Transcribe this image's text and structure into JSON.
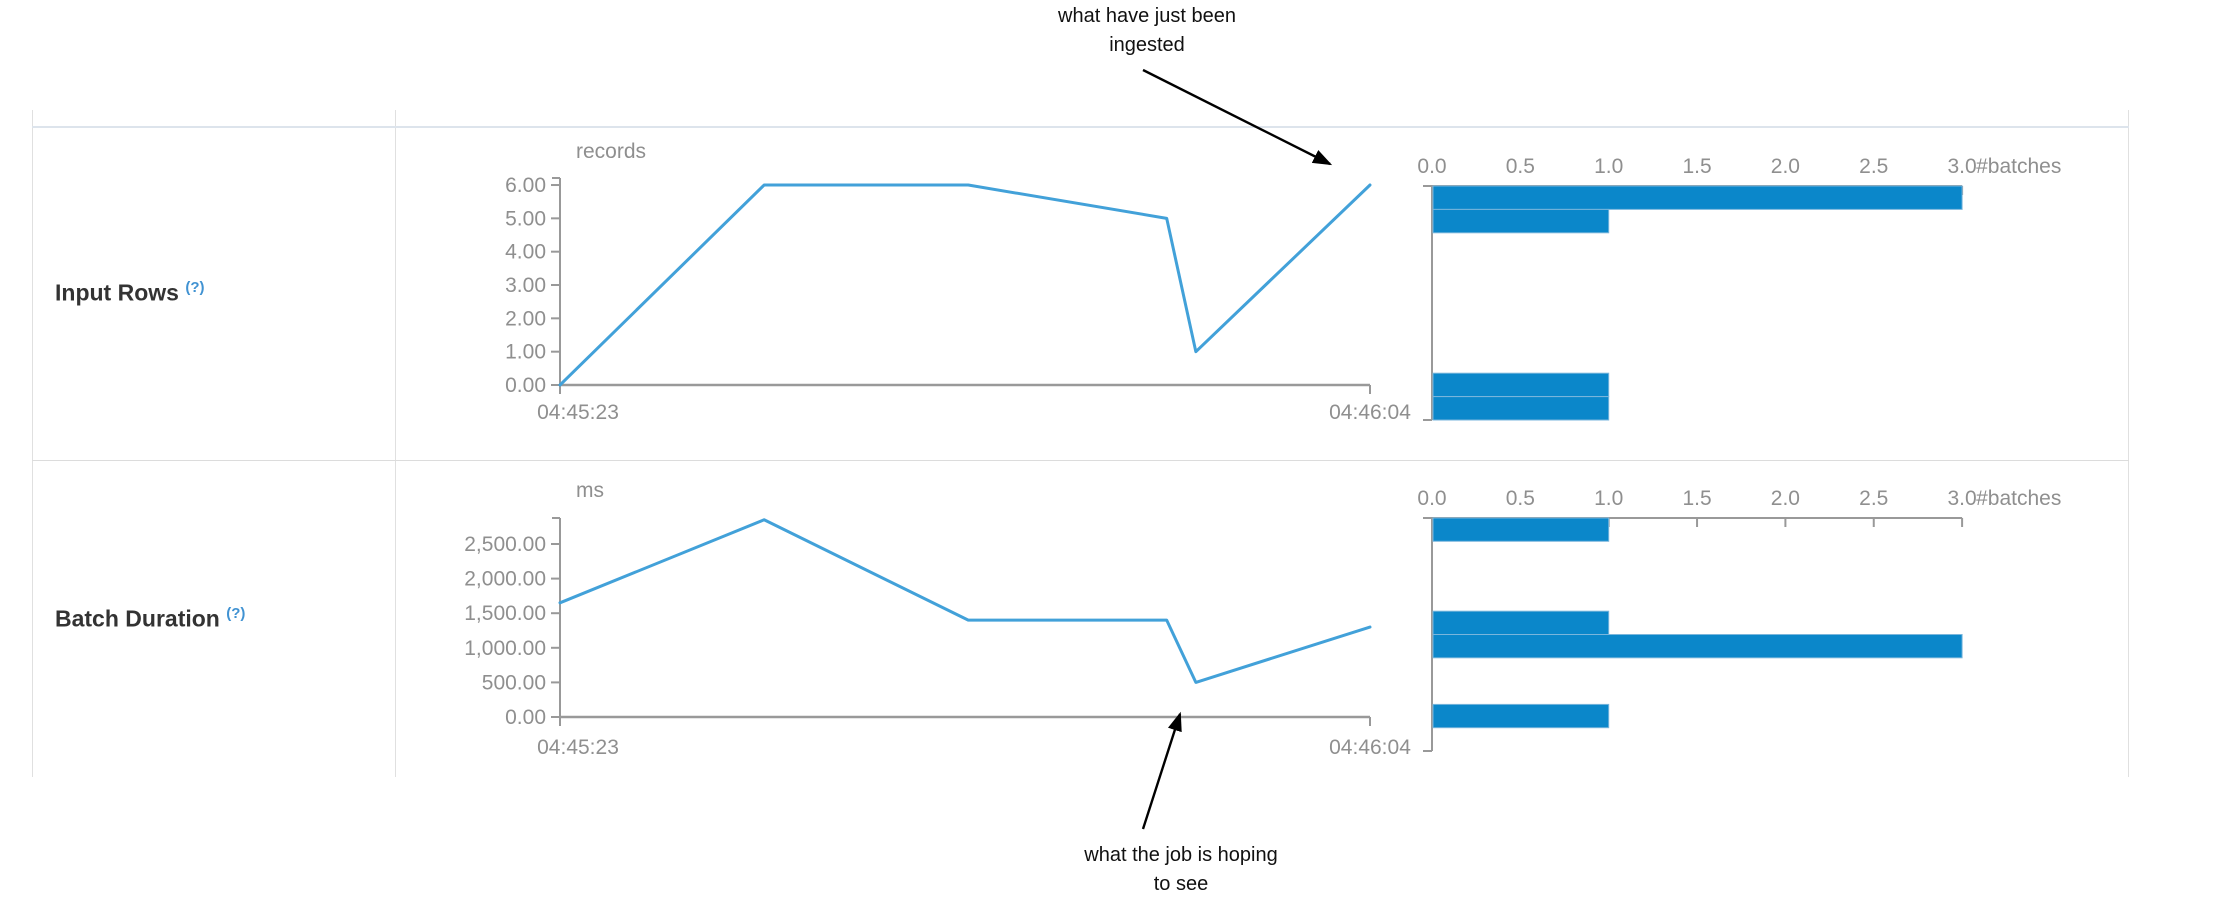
{
  "table": {
    "rows": [
      {
        "label": "Input Rows",
        "help": "(?)"
      },
      {
        "label": "Batch Duration",
        "help": "(?)"
      }
    ]
  },
  "annotations": {
    "top": {
      "line1": "what have just been",
      "line2": "ingested"
    },
    "bottom": {
      "line1": "what the job is hoping",
      "line2": "to see"
    }
  },
  "colors": {
    "line": "#42a1d9",
    "bar_fill": "#0b87ca",
    "bar_stroke": "#7ab6dc",
    "axis": "#999999",
    "tick_text": "#8f8f8f",
    "label_text": "#333333",
    "help_link": "#4092d2",
    "annotation": "#111111"
  },
  "chart_data": [
    {
      "id": "input-rows-timeline",
      "type": "line",
      "title": "Input Rows timeline",
      "unit": "records",
      "x_axis": {
        "start_label": "04:45:23",
        "end_label": "04:46:04"
      },
      "y_ticks": [
        {
          "label": "0.00",
          "value": 0
        },
        {
          "label": "1.00",
          "value": 1
        },
        {
          "label": "2.00",
          "value": 2
        },
        {
          "label": "3.00",
          "value": 3
        },
        {
          "label": "4.00",
          "value": 4
        },
        {
          "label": "5.00",
          "value": 5
        },
        {
          "label": "6.00",
          "value": 6
        }
      ],
      "y_axis_max": 6.2,
      "points": [
        {
          "x_frac": 0.0,
          "value": 0
        },
        {
          "x_frac": 0.252,
          "value": 6
        },
        {
          "x_frac": 0.504,
          "value": 6
        },
        {
          "x_frac": 0.749,
          "value": 5
        },
        {
          "x_frac": 0.785,
          "value": 1
        },
        {
          "x_frac": 1.0,
          "value": 6
        }
      ]
    },
    {
      "id": "input-rows-histogram",
      "type": "bar",
      "title": "Input Rows distribution",
      "x_label": "#batches",
      "x_ticks": [
        {
          "label": "0.0",
          "value": 0
        },
        {
          "label": "0.5",
          "value": 0.5
        },
        {
          "label": "1.0",
          "value": 1
        },
        {
          "label": "1.5",
          "value": 1.5
        },
        {
          "label": "2.0",
          "value": 2
        },
        {
          "label": "2.5",
          "value": 2.5
        },
        {
          "label": "3.0",
          "value": 3
        }
      ],
      "n_bins": 10,
      "bars": [
        {
          "bin": 0,
          "count": 3
        },
        {
          "bin": 1,
          "count": 1
        },
        {
          "bin": 8,
          "count": 1
        },
        {
          "bin": 9,
          "count": 1
        }
      ]
    },
    {
      "id": "batch-duration-timeline",
      "type": "line",
      "title": "Batch Duration timeline",
      "unit": "ms",
      "x_axis": {
        "start_label": "04:45:23",
        "end_label": "04:46:04"
      },
      "y_ticks": [
        {
          "label": "0.00",
          "value": 0
        },
        {
          "label": "500.00",
          "value": 500
        },
        {
          "label": "1,000.00",
          "value": 1000
        },
        {
          "label": "1,500.00",
          "value": 1500
        },
        {
          "label": "2,000.00",
          "value": 2000
        },
        {
          "label": "2,500.00",
          "value": 2500
        }
      ],
      "y_axis_max": 2876,
      "points": [
        {
          "x_frac": 0.0,
          "value": 1650
        },
        {
          "x_frac": 0.252,
          "value": 2850
        },
        {
          "x_frac": 0.504,
          "value": 1400
        },
        {
          "x_frac": 0.749,
          "value": 1400
        },
        {
          "x_frac": 0.785,
          "value": 500
        },
        {
          "x_frac": 1.0,
          "value": 1300
        }
      ]
    },
    {
      "id": "batch-duration-histogram",
      "type": "bar",
      "title": "Batch Duration distribution",
      "x_label": "#batches",
      "x_ticks": [
        {
          "label": "0.0",
          "value": 0
        },
        {
          "label": "0.5",
          "value": 0.5
        },
        {
          "label": "1.0",
          "value": 1
        },
        {
          "label": "1.5",
          "value": 1.5
        },
        {
          "label": "2.0",
          "value": 2
        },
        {
          "label": "2.5",
          "value": 2.5
        },
        {
          "label": "3.0",
          "value": 3
        }
      ],
      "n_bins": 10,
      "bars": [
        {
          "bin": 0,
          "count": 1
        },
        {
          "bin": 4,
          "count": 1
        },
        {
          "bin": 5,
          "count": 3
        },
        {
          "bin": 8,
          "count": 1
        }
      ]
    }
  ]
}
